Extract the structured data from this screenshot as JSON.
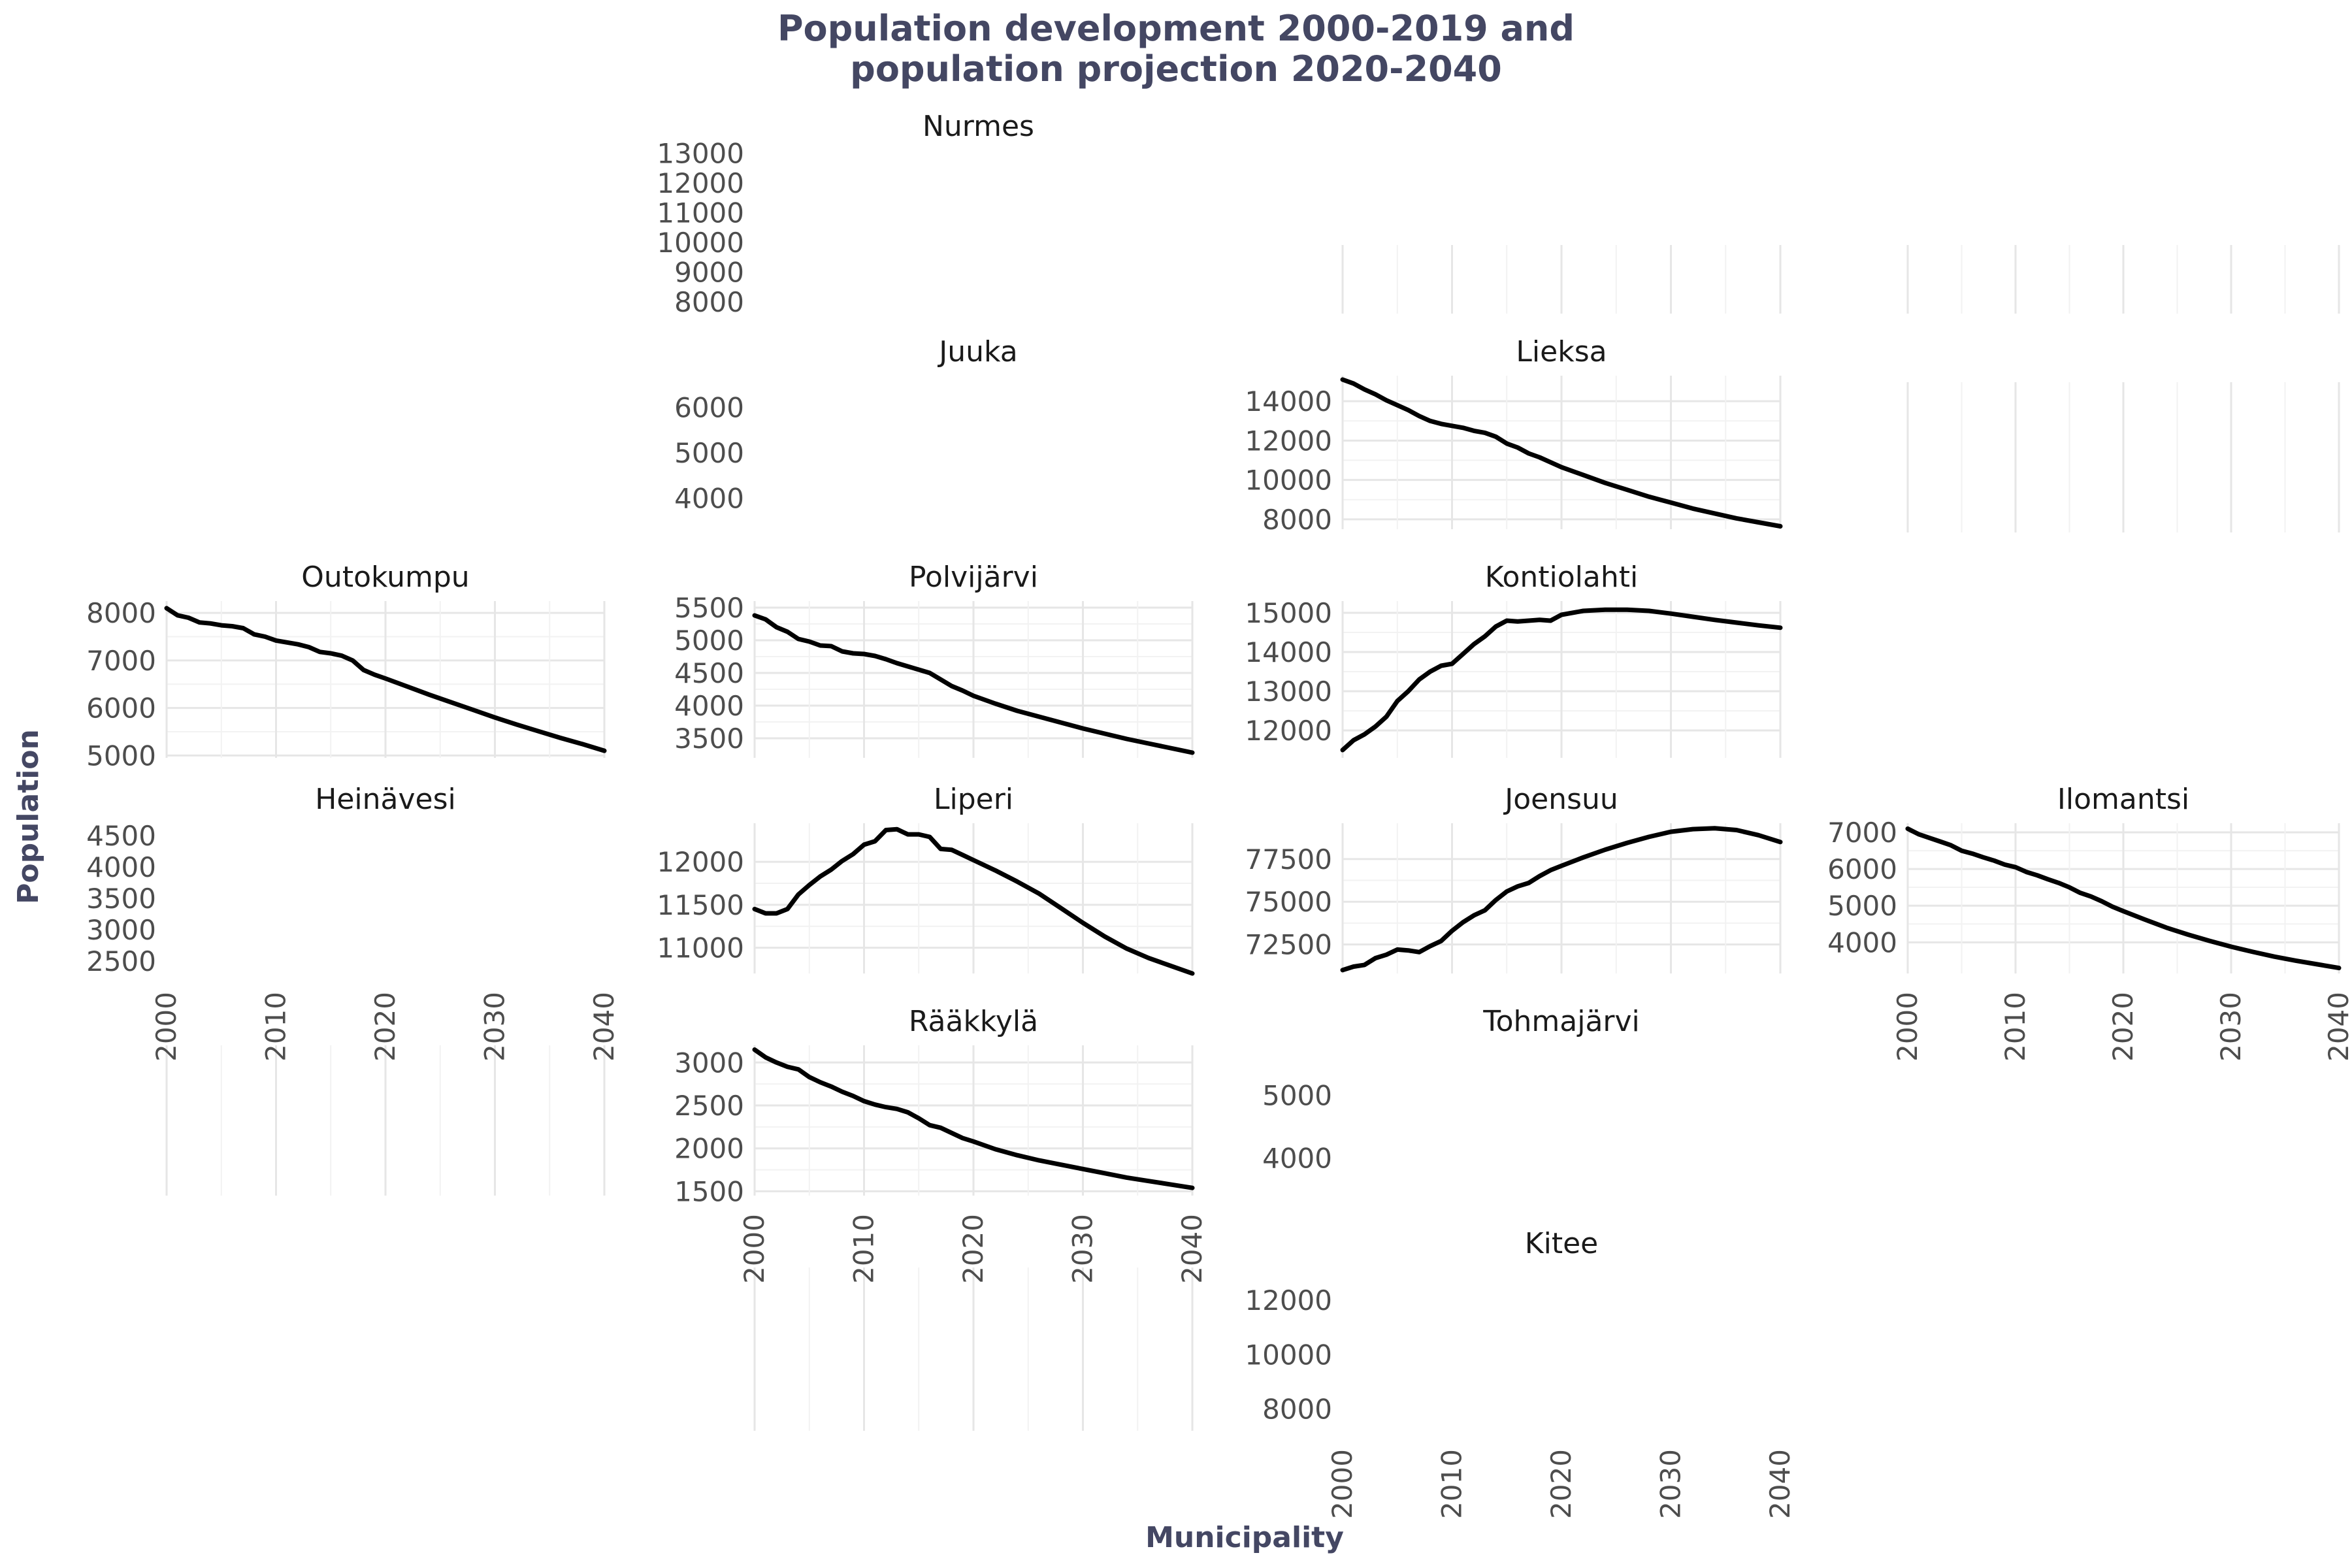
{
  "chart_data": {
    "type": "line",
    "title_lines": [
      "Population development 2000-2019 and",
      "population projection 2020-2040"
    ],
    "xlabel": "Municipality",
    "ylabel": "Population",
    "x_ticks": [
      2000,
      2010,
      2020,
      2030,
      2040
    ],
    "xlim": [
      2000,
      2040
    ],
    "facets": [
      {
        "name": "Nurmes",
        "ylim": [
          7600,
          13100
        ],
        "y_ticks": [
          8000,
          9000,
          10000,
          11000,
          12000,
          13000
        ],
        "points": []
      },
      {
        "name": "Juuka",
        "ylim": [
          3100,
          6700
        ],
        "y_ticks": [
          4000,
          5000,
          6000
        ],
        "points": []
      },
      {
        "name": "Lieksa",
        "ylim": [
          7500,
          15300
        ],
        "y_ticks": [
          8000,
          10000,
          12000,
          14000
        ],
        "points": [
          [
            2000,
            15100
          ],
          [
            2001,
            14900
          ],
          [
            2002,
            14600
          ],
          [
            2003,
            14350
          ],
          [
            2004,
            14050
          ],
          [
            2005,
            13800
          ],
          [
            2006,
            13550
          ],
          [
            2007,
            13250
          ],
          [
            2008,
            13000
          ],
          [
            2009,
            12850
          ],
          [
            2010,
            12750
          ],
          [
            2011,
            12650
          ],
          [
            2012,
            12500
          ],
          [
            2013,
            12400
          ],
          [
            2014,
            12200
          ],
          [
            2015,
            11850
          ],
          [
            2016,
            11650
          ],
          [
            2017,
            11350
          ],
          [
            2018,
            11150
          ],
          [
            2019,
            10900
          ],
          [
            2020,
            10650
          ],
          [
            2022,
            10250
          ],
          [
            2024,
            9850
          ],
          [
            2026,
            9500
          ],
          [
            2028,
            9150
          ],
          [
            2030,
            8850
          ],
          [
            2032,
            8550
          ],
          [
            2034,
            8300
          ],
          [
            2036,
            8050
          ],
          [
            2038,
            7850
          ],
          [
            2040,
            7650
          ]
        ]
      },
      {
        "name": "Outokumpu",
        "ylim": [
          4950,
          8250
        ],
        "y_ticks": [
          5000,
          6000,
          7000,
          8000
        ],
        "points": [
          [
            2000,
            8100
          ],
          [
            2001,
            7950
          ],
          [
            2002,
            7900
          ],
          [
            2003,
            7800
          ],
          [
            2004,
            7780
          ],
          [
            2005,
            7740
          ],
          [
            2006,
            7720
          ],
          [
            2007,
            7680
          ],
          [
            2008,
            7550
          ],
          [
            2009,
            7500
          ],
          [
            2010,
            7420
          ],
          [
            2011,
            7380
          ],
          [
            2012,
            7340
          ],
          [
            2013,
            7280
          ],
          [
            2014,
            7180
          ],
          [
            2015,
            7150
          ],
          [
            2016,
            7100
          ],
          [
            2017,
            7000
          ],
          [
            2018,
            6800
          ],
          [
            2019,
            6700
          ],
          [
            2020,
            6620
          ],
          [
            2022,
            6450
          ],
          [
            2024,
            6280
          ],
          [
            2026,
            6120
          ],
          [
            2028,
            5960
          ],
          [
            2030,
            5800
          ],
          [
            2032,
            5650
          ],
          [
            2034,
            5510
          ],
          [
            2036,
            5370
          ],
          [
            2038,
            5240
          ],
          [
            2040,
            5100
          ]
        ]
      },
      {
        "name": "Polvijärvi",
        "ylim": [
          3200,
          5600
        ],
        "y_ticks": [
          3500,
          4000,
          4500,
          5000,
          5500
        ],
        "points": [
          [
            2000,
            5380
          ],
          [
            2001,
            5320
          ],
          [
            2002,
            5200
          ],
          [
            2003,
            5130
          ],
          [
            2004,
            5020
          ],
          [
            2005,
            4980
          ],
          [
            2006,
            4920
          ],
          [
            2007,
            4910
          ],
          [
            2008,
            4830
          ],
          [
            2009,
            4800
          ],
          [
            2010,
            4790
          ],
          [
            2011,
            4760
          ],
          [
            2012,
            4710
          ],
          [
            2013,
            4650
          ],
          [
            2014,
            4600
          ],
          [
            2015,
            4550
          ],
          [
            2016,
            4500
          ],
          [
            2017,
            4400
          ],
          [
            2018,
            4300
          ],
          [
            2019,
            4230
          ],
          [
            2020,
            4150
          ],
          [
            2022,
            4030
          ],
          [
            2024,
            3920
          ],
          [
            2026,
            3830
          ],
          [
            2028,
            3740
          ],
          [
            2030,
            3650
          ],
          [
            2032,
            3570
          ],
          [
            2034,
            3490
          ],
          [
            2036,
            3420
          ],
          [
            2038,
            3350
          ],
          [
            2040,
            3280
          ]
        ]
      },
      {
        "name": "Kontiolahti",
        "ylim": [
          11300,
          15300
        ],
        "y_ticks": [
          12000,
          13000,
          14000,
          15000
        ],
        "points": [
          [
            2000,
            11500
          ],
          [
            2001,
            11750
          ],
          [
            2002,
            11900
          ],
          [
            2003,
            12100
          ],
          [
            2004,
            12350
          ],
          [
            2005,
            12750
          ],
          [
            2006,
            13000
          ],
          [
            2007,
            13300
          ],
          [
            2008,
            13500
          ],
          [
            2009,
            13650
          ],
          [
            2010,
            13700
          ],
          [
            2011,
            13950
          ],
          [
            2012,
            14200
          ],
          [
            2013,
            14400
          ],
          [
            2014,
            14650
          ],
          [
            2015,
            14800
          ],
          [
            2016,
            14780
          ],
          [
            2017,
            14800
          ],
          [
            2018,
            14820
          ],
          [
            2019,
            14800
          ],
          [
            2020,
            14950
          ],
          [
            2022,
            15050
          ],
          [
            2024,
            15080
          ],
          [
            2026,
            15080
          ],
          [
            2028,
            15050
          ],
          [
            2030,
            14980
          ],
          [
            2032,
            14900
          ],
          [
            2034,
            14820
          ],
          [
            2036,
            14750
          ],
          [
            2038,
            14680
          ],
          [
            2040,
            14620
          ]
        ]
      },
      {
        "name": "Heinävesi",
        "ylim": [
          2300,
          4700
        ],
        "y_ticks": [
          2500,
          3000,
          3500,
          4000,
          4500
        ],
        "points": []
      },
      {
        "name": "Liperi",
        "ylim": [
          10700,
          12450
        ],
        "y_ticks": [
          11000,
          11500,
          12000
        ],
        "points": [
          [
            2000,
            11450
          ],
          [
            2001,
            11400
          ],
          [
            2002,
            11400
          ],
          [
            2003,
            11450
          ],
          [
            2004,
            11620
          ],
          [
            2005,
            11730
          ],
          [
            2006,
            11830
          ],
          [
            2007,
            11910
          ],
          [
            2008,
            12010
          ],
          [
            2009,
            12090
          ],
          [
            2010,
            12200
          ],
          [
            2011,
            12240
          ],
          [
            2012,
            12370
          ],
          [
            2013,
            12380
          ],
          [
            2014,
            12320
          ],
          [
            2015,
            12320
          ],
          [
            2016,
            12290
          ],
          [
            2017,
            12150
          ],
          [
            2018,
            12140
          ],
          [
            2019,
            12080
          ],
          [
            2020,
            12020
          ],
          [
            2022,
            11900
          ],
          [
            2024,
            11770
          ],
          [
            2026,
            11630
          ],
          [
            2028,
            11460
          ],
          [
            2030,
            11290
          ],
          [
            2032,
            11130
          ],
          [
            2034,
            10990
          ],
          [
            2036,
            10880
          ],
          [
            2038,
            10790
          ],
          [
            2040,
            10700
          ]
        ]
      },
      {
        "name": "Joensuu",
        "ylim": [
          70800,
          79600
        ],
        "y_ticks": [
          72500,
          75000,
          77500
        ],
        "points": [
          [
            2000,
            71000
          ],
          [
            2001,
            71200
          ],
          [
            2002,
            71300
          ],
          [
            2003,
            71700
          ],
          [
            2004,
            71900
          ],
          [
            2005,
            72200
          ],
          [
            2006,
            72150
          ],
          [
            2007,
            72050
          ],
          [
            2008,
            72400
          ],
          [
            2009,
            72700
          ],
          [
            2010,
            73300
          ],
          [
            2011,
            73800
          ],
          [
            2012,
            74200
          ],
          [
            2013,
            74500
          ],
          [
            2014,
            75100
          ],
          [
            2015,
            75600
          ],
          [
            2016,
            75900
          ],
          [
            2017,
            76100
          ],
          [
            2018,
            76500
          ],
          [
            2019,
            76850
          ],
          [
            2020,
            77100
          ],
          [
            2022,
            77600
          ],
          [
            2024,
            78050
          ],
          [
            2026,
            78450
          ],
          [
            2028,
            78800
          ],
          [
            2030,
            79100
          ],
          [
            2032,
            79250
          ],
          [
            2034,
            79300
          ],
          [
            2036,
            79200
          ],
          [
            2038,
            78900
          ],
          [
            2040,
            78500
          ]
        ]
      },
      {
        "name": "Ilomantsi",
        "ylim": [
          3150,
          7250
        ],
        "y_ticks": [
          4000,
          5000,
          6000,
          7000
        ],
        "points": [
          [
            2000,
            7100
          ],
          [
            2001,
            6950
          ],
          [
            2002,
            6850
          ],
          [
            2003,
            6750
          ],
          [
            2004,
            6650
          ],
          [
            2005,
            6500
          ],
          [
            2006,
            6420
          ],
          [
            2007,
            6320
          ],
          [
            2008,
            6230
          ],
          [
            2009,
            6120
          ],
          [
            2010,
            6050
          ],
          [
            2011,
            5920
          ],
          [
            2012,
            5830
          ],
          [
            2013,
            5720
          ],
          [
            2014,
            5620
          ],
          [
            2015,
            5500
          ],
          [
            2016,
            5350
          ],
          [
            2017,
            5250
          ],
          [
            2018,
            5120
          ],
          [
            2019,
            4970
          ],
          [
            2020,
            4850
          ],
          [
            2022,
            4620
          ],
          [
            2024,
            4400
          ],
          [
            2026,
            4210
          ],
          [
            2028,
            4040
          ],
          [
            2030,
            3880
          ],
          [
            2032,
            3740
          ],
          [
            2034,
            3610
          ],
          [
            2036,
            3500
          ],
          [
            2038,
            3400
          ],
          [
            2040,
            3300
          ]
        ]
      },
      {
        "name": "Rääkkylä",
        "ylim": [
          1450,
          3200
        ],
        "y_ticks": [
          1500,
          2000,
          2500,
          3000
        ],
        "points": [
          [
            2000,
            3150
          ],
          [
            2001,
            3060
          ],
          [
            2002,
            3000
          ],
          [
            2003,
            2950
          ],
          [
            2004,
            2920
          ],
          [
            2005,
            2830
          ],
          [
            2006,
            2770
          ],
          [
            2007,
            2720
          ],
          [
            2008,
            2660
          ],
          [
            2009,
            2610
          ],
          [
            2010,
            2550
          ],
          [
            2011,
            2510
          ],
          [
            2012,
            2480
          ],
          [
            2013,
            2460
          ],
          [
            2014,
            2420
          ],
          [
            2015,
            2350
          ],
          [
            2016,
            2270
          ],
          [
            2017,
            2240
          ],
          [
            2018,
            2180
          ],
          [
            2019,
            2120
          ],
          [
            2020,
            2080
          ],
          [
            2022,
            1990
          ],
          [
            2024,
            1920
          ],
          [
            2026,
            1860
          ],
          [
            2028,
            1810
          ],
          [
            2030,
            1760
          ],
          [
            2032,
            1710
          ],
          [
            2034,
            1660
          ],
          [
            2036,
            1620
          ],
          [
            2038,
            1580
          ],
          [
            2040,
            1540
          ]
        ]
      },
      {
        "name": "Tohmajärvi",
        "ylim": [
          3400,
          5800
        ],
        "y_ticks": [
          4000,
          5000
        ],
        "points": []
      },
      {
        "name": "Kitee",
        "ylim": [
          7200,
          13200
        ],
        "y_ticks": [
          8000,
          10000,
          12000
        ],
        "points": []
      }
    ]
  }
}
